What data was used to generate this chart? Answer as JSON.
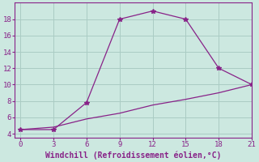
{
  "line1_x": [
    0,
    3,
    6,
    9,
    12,
    15,
    18,
    21
  ],
  "line1_y": [
    4.5,
    4.5,
    7.8,
    18.0,
    19.0,
    18.0,
    12.0,
    10.0
  ],
  "line2_x": [
    0,
    3,
    6,
    9,
    12,
    15,
    18,
    21
  ],
  "line2_y": [
    4.5,
    4.8,
    5.8,
    6.5,
    7.5,
    8.2,
    9.0,
    10.0
  ],
  "line_color": "#882288",
  "marker": "*",
  "marker_size": 4,
  "xlim": [
    -0.5,
    21
  ],
  "ylim": [
    3.5,
    20
  ],
  "xticks": [
    0,
    3,
    6,
    9,
    12,
    15,
    18,
    21
  ],
  "yticks": [
    4,
    6,
    8,
    10,
    12,
    14,
    16,
    18
  ],
  "xlabel": "Windchill (Refroidissement éolien,°C)",
  "background_color": "#cce8e0",
  "grid_color": "#aaccc4",
  "spine_color": "#882288"
}
